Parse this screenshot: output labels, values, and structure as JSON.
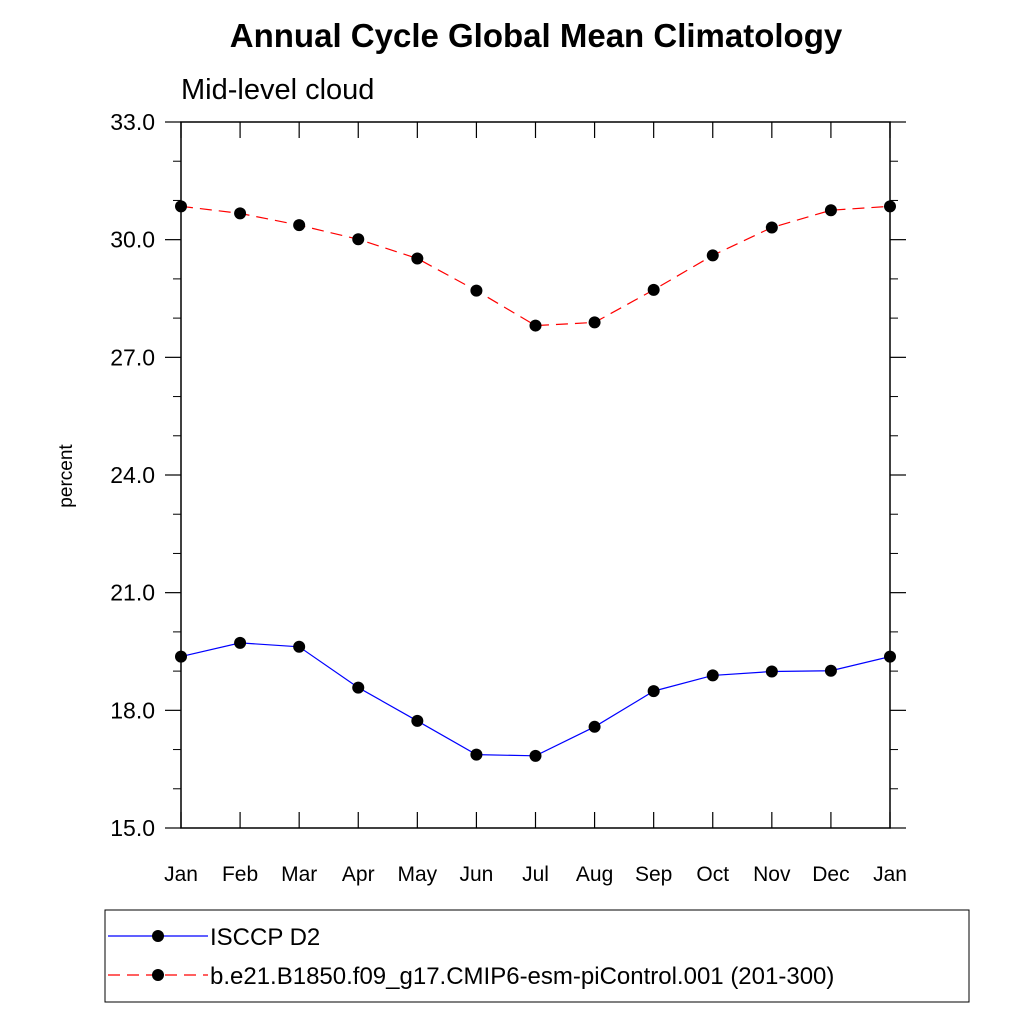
{
  "chart_data": {
    "type": "line",
    "title": "Annual Cycle Global Mean Climatology",
    "subtitle": "Mid-level cloud",
    "ylabel": "percent",
    "xlabel": "",
    "ylim": [
      15.0,
      33.0
    ],
    "yticks": [
      "15.0",
      "18.0",
      "21.0",
      "24.0",
      "27.0",
      "30.0",
      "33.0"
    ],
    "yticks_minor_step": 1.0,
    "categories": [
      "Jan",
      "Feb",
      "Mar",
      "Apr",
      "May",
      "Jun",
      "Jul",
      "Aug",
      "Sep",
      "Oct",
      "Nov",
      "Dec",
      "Jan"
    ],
    "grid": false,
    "legend_position": "bottom",
    "series": [
      {
        "name": "ISCCP D2",
        "color": "#0000ff",
        "dash": "solid",
        "marker": "filled-circle",
        "values": [
          19.37,
          19.72,
          19.62,
          18.58,
          17.73,
          16.87,
          16.84,
          17.58,
          18.49,
          18.89,
          18.99,
          19.01,
          19.37
        ]
      },
      {
        "name": "b.e21.B1850.f09_g17.CMIP6-esm-piControl.001 (201-300)",
        "color": "#ff0000",
        "dash": "dashed",
        "marker": "filled-circle",
        "values": [
          30.85,
          30.67,
          30.37,
          30.01,
          29.52,
          28.7,
          27.81,
          27.89,
          28.72,
          29.6,
          30.31,
          30.75,
          30.85
        ]
      }
    ]
  }
}
